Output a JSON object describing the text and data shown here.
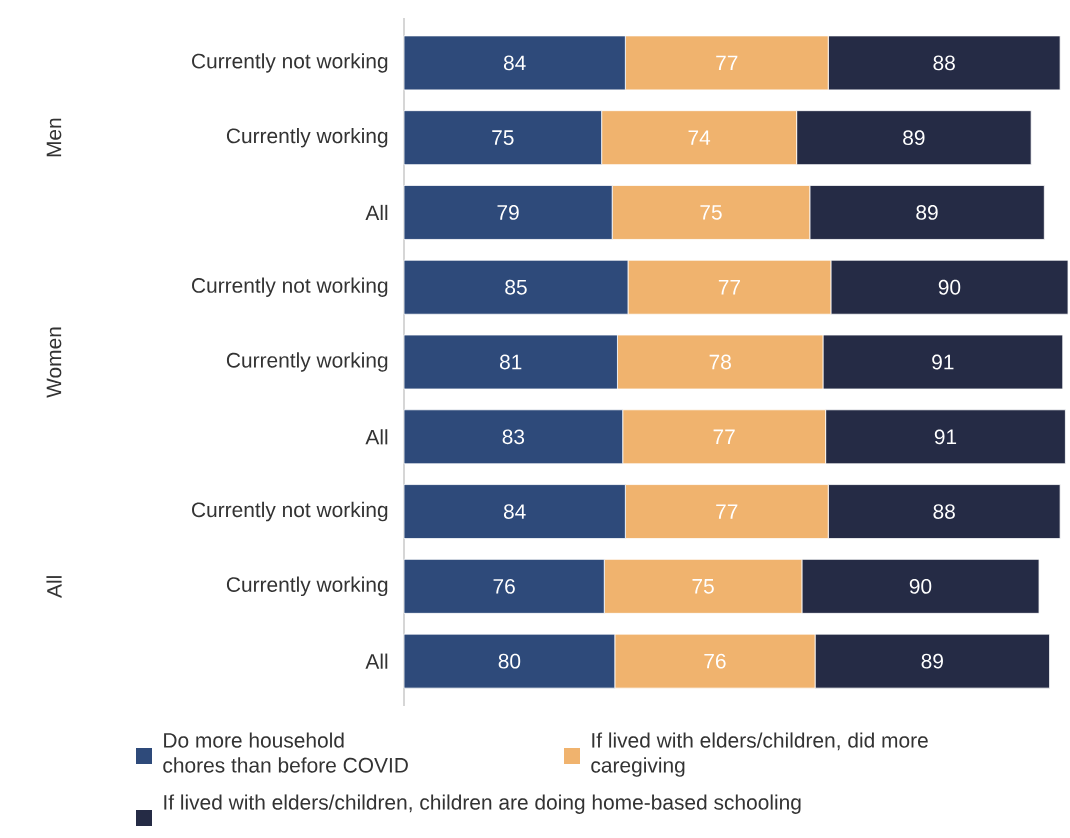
{
  "chart_data": {
    "type": "bar",
    "orientation": "horizontal",
    "stacked": true,
    "data_labels": true,
    "tick_labels": "y",
    "legend": "bottom",
    "categories": [
      "Currently not working",
      "Currently working",
      "All",
      "Currently not working",
      "Currently working",
      "All",
      "Currently not working",
      "Currently working",
      "All"
    ],
    "annotations": [
      "Men",
      "Women",
      "All"
    ],
    "series": [
      {
        "name": "Do more household chores than before COVID",
        "color": "#2e4a7a",
        "values": [
          84,
          75,
          79,
          85,
          81,
          83,
          84,
          76,
          80
        ]
      },
      {
        "name": "If lived with elders/children, did more caregiving",
        "color": "#f0b36e",
        "values": [
          77,
          74,
          75,
          77,
          78,
          77,
          77,
          75,
          76
        ]
      },
      {
        "name": "If lived with elders/children, children are doing home-based schooling",
        "color": "#252b45",
        "values": [
          88,
          89,
          89,
          90,
          91,
          91,
          88,
          90,
          89
        ]
      }
    ]
  }
}
